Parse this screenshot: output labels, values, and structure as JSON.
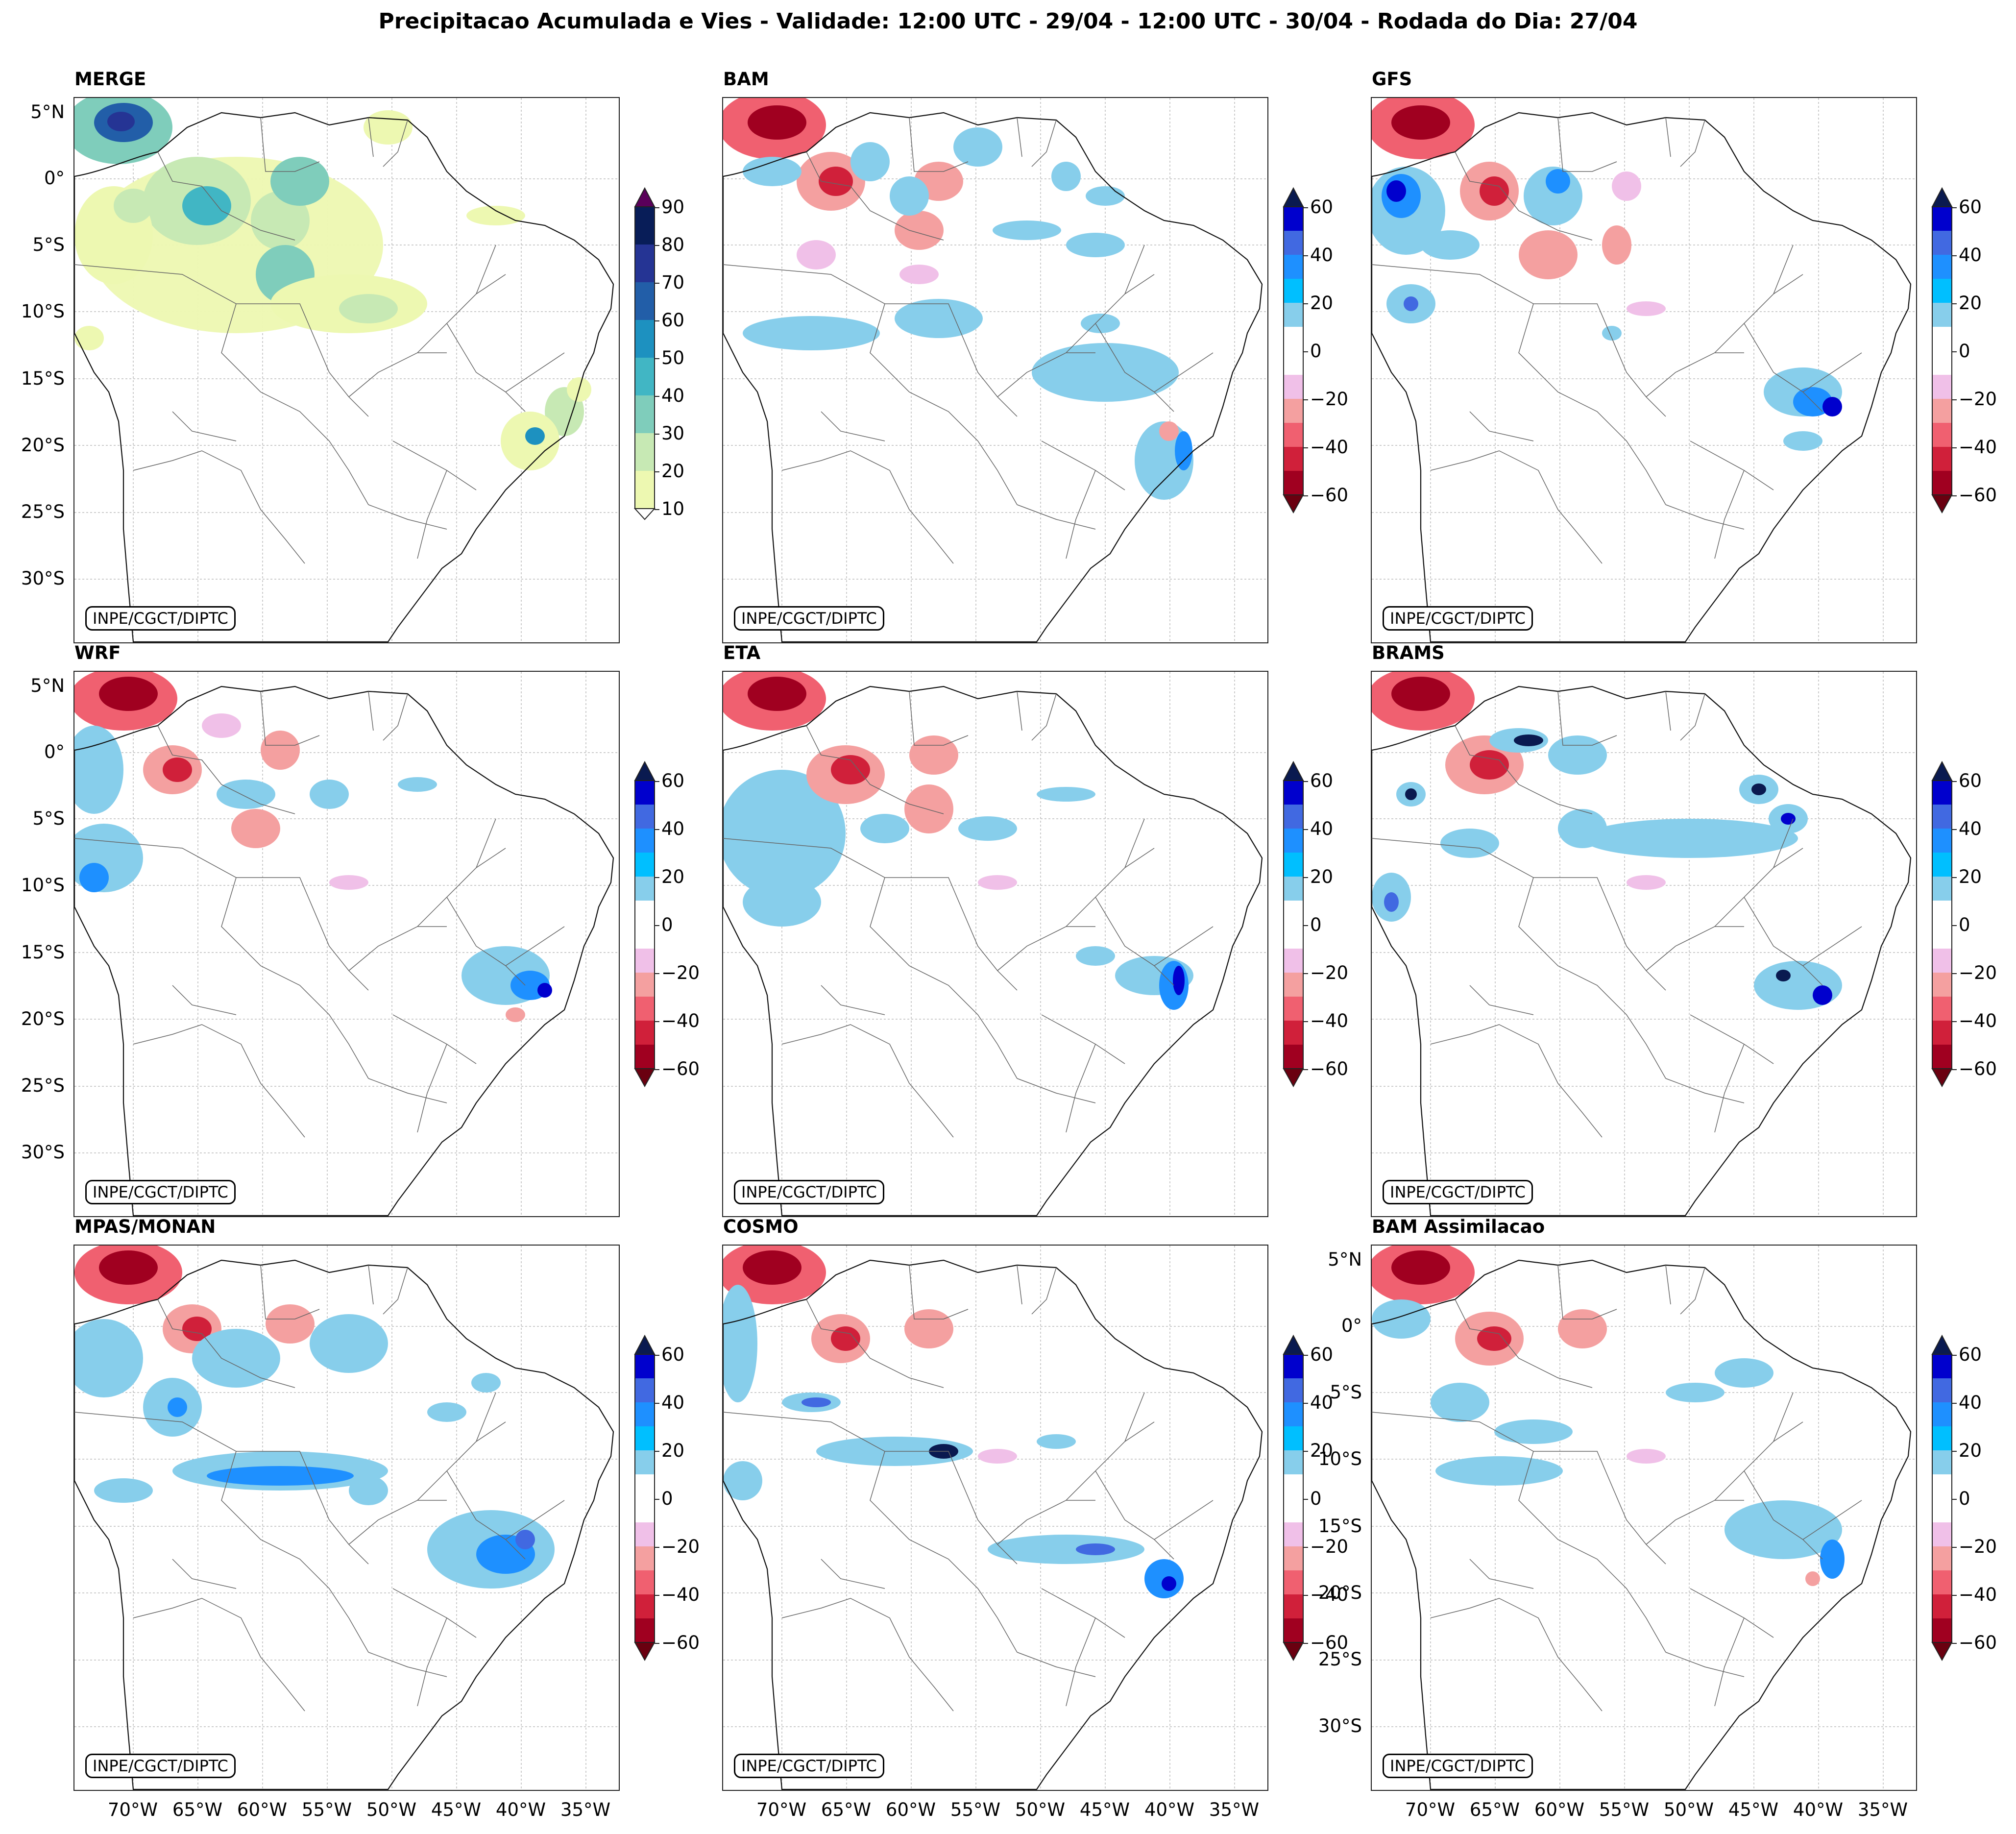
{
  "title": "Precipitacao Acumulada e Vies - Validade: 12:00 UTC - 29/04 - 12:00 UTC - 30/04 - Rodada do Dia: 27/04",
  "credit": "INPE/CGCT/DIPTC",
  "panels": [
    {
      "name": "MERGE",
      "kind": "precip"
    },
    {
      "name": "BAM",
      "kind": "bias"
    },
    {
      "name": "GFS",
      "kind": "bias"
    },
    {
      "name": "WRF",
      "kind": "bias"
    },
    {
      "name": "ETA",
      "kind": "bias"
    },
    {
      "name": "BRAMS",
      "kind": "bias"
    },
    {
      "name": "MPAS/MONAN",
      "kind": "bias"
    },
    {
      "name": "COSMO",
      "kind": "bias"
    },
    {
      "name": "BAM Assimilacao",
      "kind": "bias"
    }
  ],
  "lat_labels": [
    "5°N",
    "0°",
    "5°S",
    "10°S",
    "15°S",
    "20°S",
    "25°S",
    "30°S"
  ],
  "lon_labels": [
    "70°W",
    "65°W",
    "60°W",
    "55°W",
    "50°W",
    "45°W",
    "40°W",
    "35°W"
  ],
  "precip_colorbar": {
    "ticks": [
      "10",
      "20",
      "30",
      "40",
      "50",
      "60",
      "70",
      "80",
      "90"
    ],
    "colors": [
      "#edf8b1",
      "#c7e9b4",
      "#7fcdbb",
      "#41b6c4",
      "#1d91c0",
      "#225ea8",
      "#253494",
      "#081d58"
    ],
    "extend_max_color": "#5a005a"
  },
  "bias_colorbar": {
    "ticks": [
      "60",
      "40",
      "20",
      "0",
      "−20",
      "−40",
      "−60"
    ],
    "colors": [
      "#0000cd",
      "#4169e1",
      "#1e90ff",
      "#00bfff",
      "#87ceeb",
      "#ffffff",
      "#ffffff",
      "#f0c0e8",
      "#f4a0a0",
      "#f06070",
      "#d0203a",
      "#a00020"
    ],
    "extend_max_color": "#0a1a50",
    "extend_min_color": "#6a0010"
  }
}
